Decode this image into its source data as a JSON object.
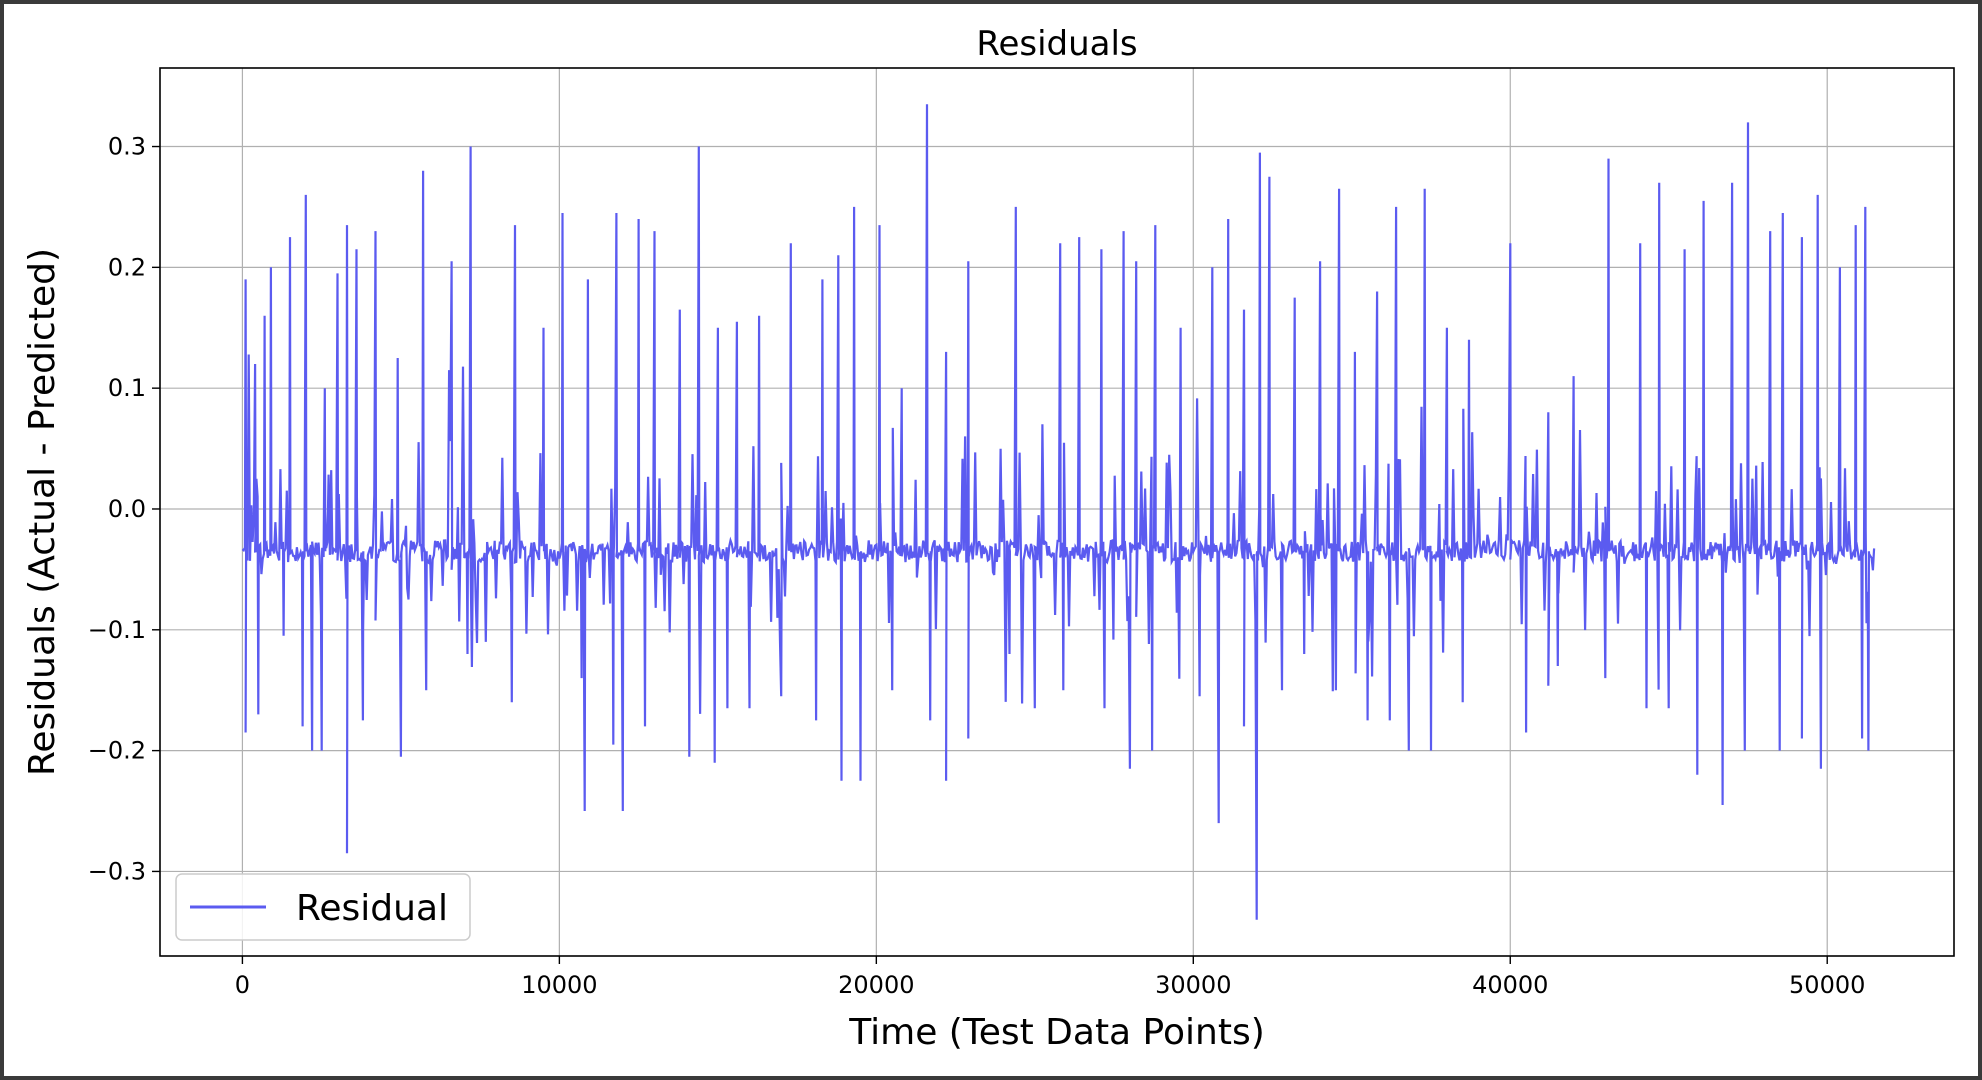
{
  "chart_data": {
    "type": "line",
    "title": "Residuals",
    "xlabel": "Time (Test Data Points)",
    "ylabel": "Residuals (Actual - Predicted)",
    "xlim": [
      -2600,
      54000
    ],
    "ylim": [
      -0.37,
      0.365
    ],
    "xticks": [
      0,
      10000,
      20000,
      30000,
      40000,
      50000
    ],
    "xtick_labels": [
      "0",
      "10000",
      "20000",
      "30000",
      "40000",
      "50000"
    ],
    "yticks": [
      -0.3,
      -0.2,
      -0.1,
      0.0,
      0.1,
      0.2,
      0.3
    ],
    "ytick_labels": [
      "−0.3",
      "−0.2",
      "−0.1",
      "0.0",
      "0.1",
      "0.2",
      "0.3"
    ],
    "grid": true,
    "legend_position": "lower-left",
    "baseline": -0.035,
    "x_range": [
      0,
      51500
    ],
    "series": [
      {
        "name": "Residual",
        "color": "#5b5bf0",
        "peaks": [
          [
            100,
            0.19
          ],
          [
            400,
            0.12
          ],
          [
            700,
            0.16
          ],
          [
            900,
            0.2
          ],
          [
            1500,
            0.225
          ],
          [
            2000,
            0.26
          ],
          [
            2600,
            0.1
          ],
          [
            3000,
            0.195
          ],
          [
            3300,
            0.235
          ],
          [
            3600,
            0.215
          ],
          [
            4200,
            0.23
          ],
          [
            4900,
            0.125
          ],
          [
            5700,
            0.28
          ],
          [
            6600,
            0.205
          ],
          [
            7200,
            0.3
          ],
          [
            8600,
            0.235
          ],
          [
            9500,
            0.15
          ],
          [
            10100,
            0.245
          ],
          [
            10900,
            0.19
          ],
          [
            11800,
            0.245
          ],
          [
            12500,
            0.24
          ],
          [
            13000,
            0.23
          ],
          [
            13800,
            0.165
          ],
          [
            14400,
            0.3
          ],
          [
            15000,
            0.15
          ],
          [
            15600,
            0.155
          ],
          [
            16300,
            0.16
          ],
          [
            17300,
            0.22
          ],
          [
            18300,
            0.19
          ],
          [
            18800,
            0.21
          ],
          [
            19300,
            0.25
          ],
          [
            20100,
            0.235
          ],
          [
            20800,
            0.1
          ],
          [
            21600,
            0.335
          ],
          [
            22200,
            0.13
          ],
          [
            22900,
            0.205
          ],
          [
            24400,
            0.25
          ],
          [
            25800,
            0.22
          ],
          [
            26400,
            0.225
          ],
          [
            27100,
            0.215
          ],
          [
            27800,
            0.23
          ],
          [
            28200,
            0.205
          ],
          [
            28800,
            0.235
          ],
          [
            29600,
            0.15
          ],
          [
            30600,
            0.2
          ],
          [
            31100,
            0.24
          ],
          [
            31600,
            0.165
          ],
          [
            32100,
            0.295
          ],
          [
            32400,
            0.275
          ],
          [
            33200,
            0.175
          ],
          [
            34000,
            0.205
          ],
          [
            34600,
            0.265
          ],
          [
            35100,
            0.13
          ],
          [
            35800,
            0.18
          ],
          [
            36400,
            0.25
          ],
          [
            37300,
            0.265
          ],
          [
            38000,
            0.15
          ],
          [
            38700,
            0.14
          ],
          [
            40000,
            0.22
          ],
          [
            41200,
            0.08
          ],
          [
            42000,
            0.11
          ],
          [
            43100,
            0.29
          ],
          [
            44100,
            0.22
          ],
          [
            44700,
            0.27
          ],
          [
            45500,
            0.215
          ],
          [
            46100,
            0.255
          ],
          [
            47000,
            0.27
          ],
          [
            47500,
            0.32
          ],
          [
            48200,
            0.23
          ],
          [
            48600,
            0.245
          ],
          [
            49200,
            0.225
          ],
          [
            49700,
            0.26
          ],
          [
            50400,
            0.2
          ],
          [
            50900,
            0.235
          ],
          [
            51200,
            0.25
          ]
        ],
        "troughs": [
          [
            100,
            -0.185
          ],
          [
            500,
            -0.17
          ],
          [
            1300,
            -0.105
          ],
          [
            1900,
            -0.18
          ],
          [
            2200,
            -0.2
          ],
          [
            2500,
            -0.2
          ],
          [
            3300,
            -0.285
          ],
          [
            3800,
            -0.175
          ],
          [
            5000,
            -0.205
          ],
          [
            5800,
            -0.15
          ],
          [
            7100,
            -0.12
          ],
          [
            8500,
            -0.16
          ],
          [
            10700,
            -0.14
          ],
          [
            10800,
            -0.25
          ],
          [
            11700,
            -0.195
          ],
          [
            12000,
            -0.25
          ],
          [
            12700,
            -0.18
          ],
          [
            14100,
            -0.205
          ],
          [
            14900,
            -0.21
          ],
          [
            15300,
            -0.165
          ],
          [
            16000,
            -0.165
          ],
          [
            17000,
            -0.155
          ],
          [
            18100,
            -0.175
          ],
          [
            18900,
            -0.225
          ],
          [
            19500,
            -0.225
          ],
          [
            20500,
            -0.15
          ],
          [
            21700,
            -0.175
          ],
          [
            22200,
            -0.225
          ],
          [
            22900,
            -0.19
          ],
          [
            24200,
            -0.12
          ],
          [
            25000,
            -0.165
          ],
          [
            25900,
            -0.15
          ],
          [
            27200,
            -0.165
          ],
          [
            28000,
            -0.215
          ],
          [
            28700,
            -0.2
          ],
          [
            30200,
            -0.155
          ],
          [
            30800,
            -0.26
          ],
          [
            31600,
            -0.18
          ],
          [
            32000,
            -0.34
          ],
          [
            32800,
            -0.15
          ],
          [
            33500,
            -0.12
          ],
          [
            34500,
            -0.15
          ],
          [
            35500,
            -0.175
          ],
          [
            36200,
            -0.175
          ],
          [
            36800,
            -0.2
          ],
          [
            37500,
            -0.2
          ],
          [
            38500,
            -0.16
          ],
          [
            40500,
            -0.185
          ],
          [
            41500,
            -0.13
          ],
          [
            43000,
            -0.14
          ],
          [
            44300,
            -0.165
          ],
          [
            45000,
            -0.165
          ],
          [
            45900,
            -0.22
          ],
          [
            46700,
            -0.245
          ],
          [
            47400,
            -0.2
          ],
          [
            48500,
            -0.2
          ],
          [
            49200,
            -0.19
          ],
          [
            49800,
            -0.215
          ],
          [
            51100,
            -0.19
          ],
          [
            51300,
            -0.2
          ]
        ]
      }
    ]
  }
}
